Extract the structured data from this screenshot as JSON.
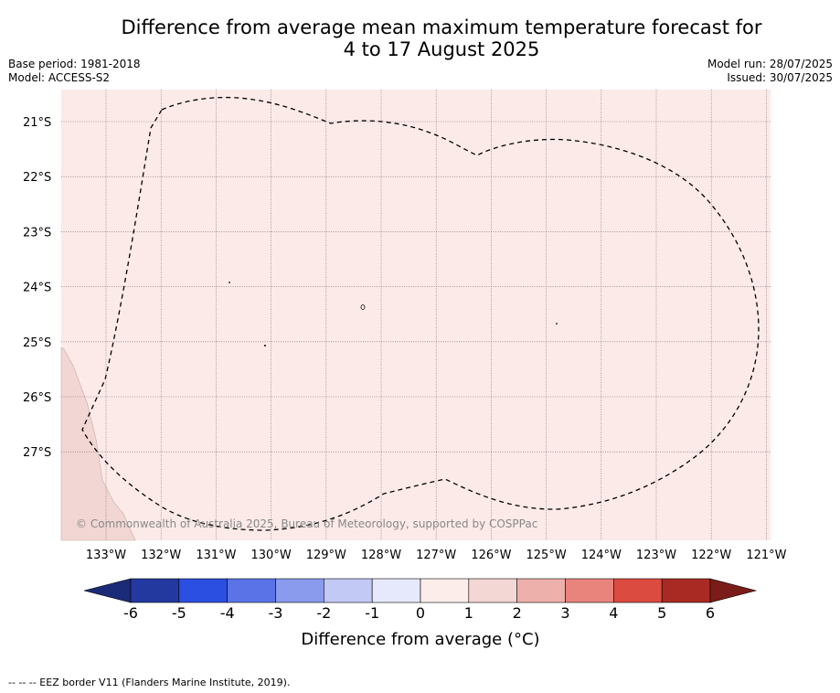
{
  "title_line1": "Difference from average mean maximum temperature forecast for",
  "title_line2": "4 to 17 August 2025",
  "base_period": "Base period: 1981-2018",
  "model": "Model: ACCESS-S2",
  "model_run": "Model run: 28/07/2025",
  "issued": "Issued: 30/07/2025",
  "lat_labels": [
    "21°S",
    "22°S",
    "23°S",
    "24°S",
    "25°S",
    "26°S",
    "27°S"
  ],
  "lon_labels": [
    "133°W",
    "132°W",
    "131°W",
    "130°W",
    "129°W",
    "128°W",
    "127°W",
    "126°W",
    "125°W",
    "124°W",
    "123°W",
    "122°W",
    "121°W"
  ],
  "copyright": "© Commonwealth of Australia 2025, Bureau of Meteorology, supported by COSPPac",
  "colorbar": {
    "ticks": [
      "-6",
      "-5",
      "-4",
      "-3",
      "-2",
      "-1",
      "0",
      "1",
      "2",
      "3",
      "4",
      "5",
      "6"
    ],
    "colors": [
      "#23399f",
      "#2b4fe0",
      "#5a73e6",
      "#8a9bee",
      "#c2c9f5",
      "#e6e9fb",
      "#fcedea",
      "#f3d7d4",
      "#eeb0ab",
      "#e9847d",
      "#dc4b40",
      "#a92a22"
    ],
    "low_extend_color": "#1b2b78",
    "high_extend_color": "#7a1d18",
    "label": "Difference from average (°C)"
  },
  "map_fill_color": "#fbeae8",
  "land_color": "#f2d6d3",
  "footnote": "-- -- -- EEZ border V11 (Flanders Marine Institute, 2019)."
}
